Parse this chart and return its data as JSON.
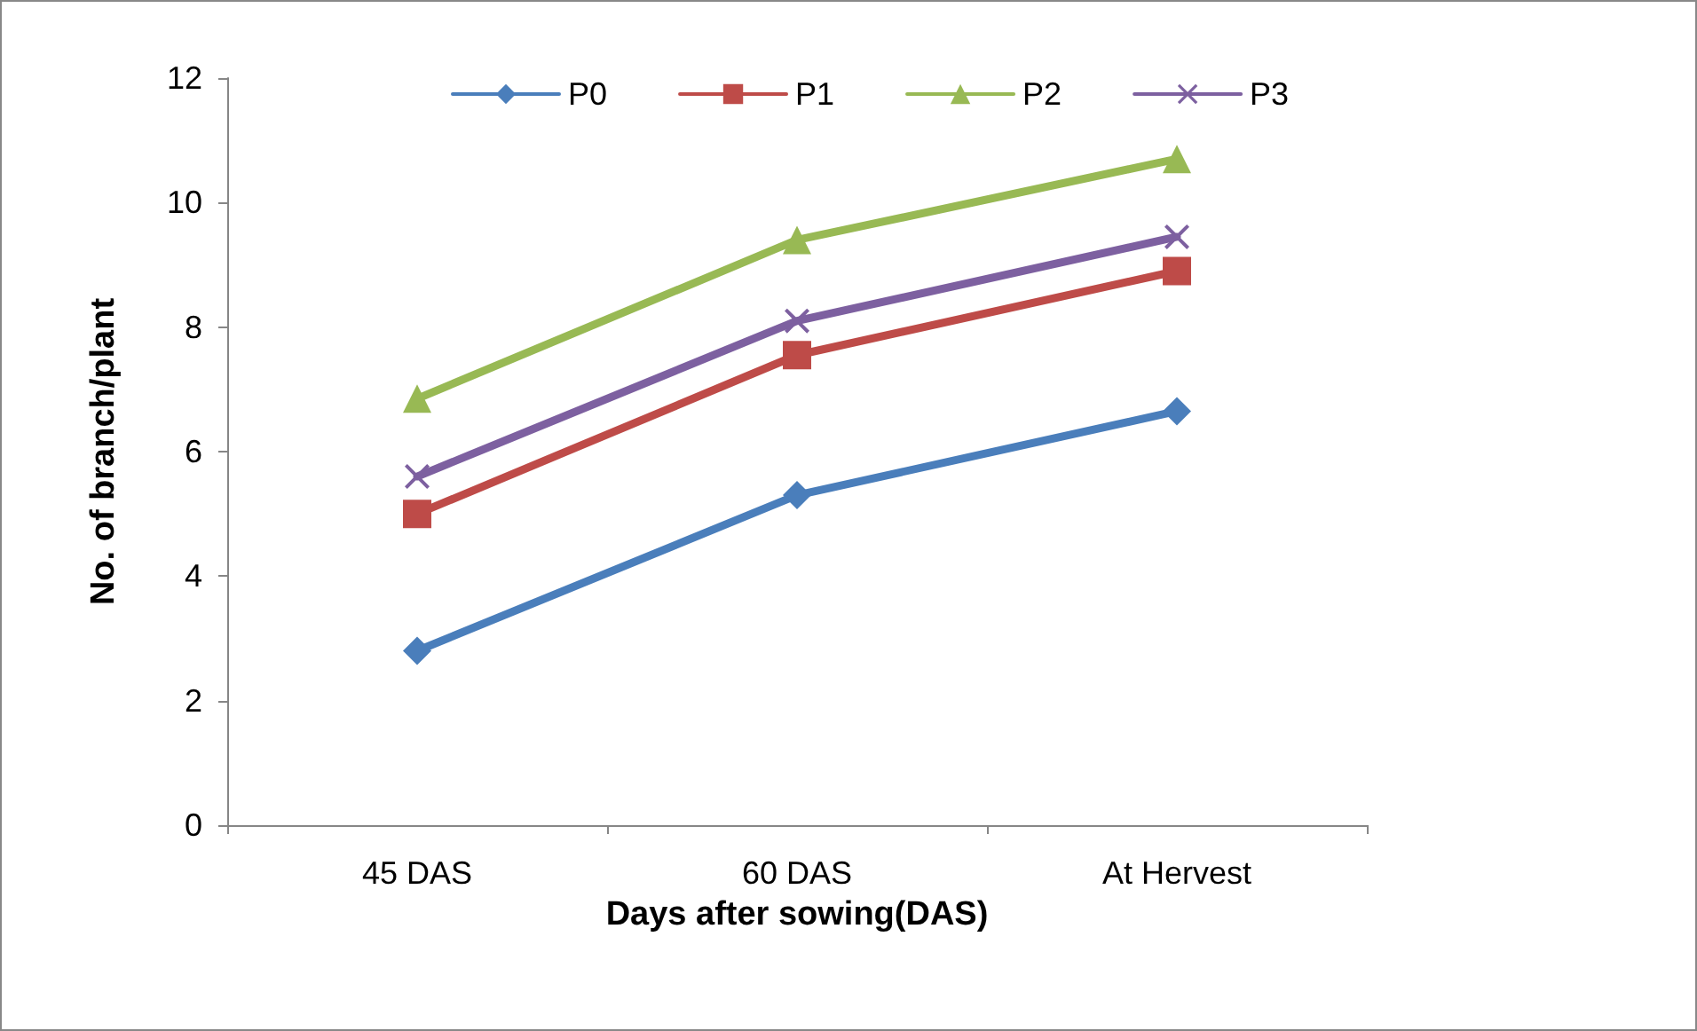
{
  "chart_data": {
    "type": "line",
    "xlabel": "Days after sowing(DAS)",
    "ylabel": "No. of branch/plant",
    "categories": [
      "45 DAS",
      "60 DAS",
      "At Hervest"
    ],
    "series": [
      {
        "name": "P0",
        "color": "#4a7ebb",
        "marker": "diamond",
        "values": [
          2.8,
          5.3,
          6.65
        ]
      },
      {
        "name": "P1",
        "color": "#be4b48",
        "marker": "square",
        "values": [
          5.0,
          7.55,
          8.9
        ]
      },
      {
        "name": "P2",
        "color": "#98b954",
        "marker": "triangle",
        "values": [
          6.85,
          9.4,
          10.7
        ]
      },
      {
        "name": "P3",
        "color": "#7d60a0",
        "marker": "cross",
        "values": [
          5.6,
          8.1,
          9.45
        ]
      }
    ],
    "ylim": [
      0,
      12
    ],
    "yticks": [
      0,
      2,
      4,
      6,
      8,
      10,
      12
    ],
    "grid": false,
    "legend": "top",
    "line_style": "solid"
  }
}
